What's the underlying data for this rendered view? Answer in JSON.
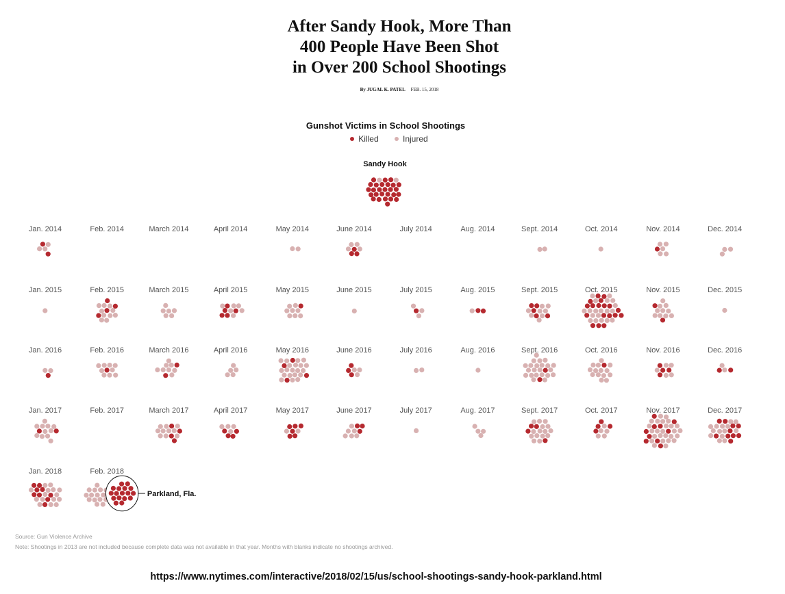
{
  "headline": {
    "line1": "After Sandy Hook, More Than",
    "line2": "400 People Have Been Shot",
    "line3": "in Over 200 School Shootings"
  },
  "byline": {
    "author": "By JUGAL K. PATEL",
    "date": "FEB. 15, 2018"
  },
  "footer": {
    "source": "Source: Gun Violence Archive",
    "note": "Note: Shootings in 2013 are not included because complete data was not available in that year. Months with blanks indicate no shootings archived.",
    "url": "https://www.nytimes.com/interactive/2018/02/15/us/school-shootings-sandy-hook-parkland.html"
  },
  "colors": {
    "killed": "#b5292f",
    "injured": "#d8b1b1",
    "annotation_outline": "#111111"
  },
  "chart_data": {
    "type": "dot-cluster",
    "title": "Gunshot Victims in School Shootings",
    "legend": [
      {
        "name": "Killed",
        "color": "#b5292f"
      },
      {
        "name": "Injured",
        "color": "#d8b1b1"
      }
    ],
    "highlight": {
      "label": "Sandy Hook",
      "killed": 27,
      "injured": 2
    },
    "months": [
      {
        "label": "Jan. 2014",
        "killed": 2,
        "injured": 3
      },
      {
        "label": "Feb. 2014",
        "killed": 0,
        "injured": 0
      },
      {
        "label": "March 2014",
        "killed": 0,
        "injured": 0
      },
      {
        "label": "April 2014",
        "killed": 0,
        "injured": 0
      },
      {
        "label": "May 2014",
        "killed": 0,
        "injured": 2
      },
      {
        "label": "June 2014",
        "killed": 3,
        "injured": 4
      },
      {
        "label": "July 2014",
        "killed": 0,
        "injured": 0
      },
      {
        "label": "Aug. 2014",
        "killed": 0,
        "injured": 0
      },
      {
        "label": "Sept. 2014",
        "killed": 0,
        "injured": 2
      },
      {
        "label": "Oct. 2014",
        "killed": 0,
        "injured": 1
      },
      {
        "label": "Nov. 2014",
        "killed": 1,
        "injured": 5
      },
      {
        "label": "Dec. 2014",
        "killed": 0,
        "injured": 3
      },
      {
        "label": "Jan. 2015",
        "killed": 0,
        "injured": 1
      },
      {
        "label": "Feb. 2015",
        "killed": 4,
        "injured": 10
      },
      {
        "label": "March 2015",
        "killed": 0,
        "injured": 6
      },
      {
        "label": "April 2015",
        "killed": 5,
        "injured": 6
      },
      {
        "label": "May 2015",
        "killed": 1,
        "injured": 8
      },
      {
        "label": "June 2015",
        "killed": 0,
        "injured": 1
      },
      {
        "label": "July 2015",
        "killed": 1,
        "injured": 3
      },
      {
        "label": "Aug. 2015",
        "killed": 2,
        "injured": 1
      },
      {
        "label": "Sept. 2015",
        "killed": 5,
        "injured": 8
      },
      {
        "label": "Oct. 2015",
        "killed": 18,
        "injured": 19
      },
      {
        "label": "Nov. 2015",
        "killed": 2,
        "injured": 10
      },
      {
        "label": "Dec. 2015",
        "killed": 0,
        "injured": 1
      },
      {
        "label": "Jan. 2016",
        "killed": 1,
        "injured": 2
      },
      {
        "label": "Feb. 2016",
        "killed": 1,
        "injured": 9
      },
      {
        "label": "March 2016",
        "killed": 2,
        "injured": 8
      },
      {
        "label": "April 2016",
        "killed": 0,
        "injured": 5
      },
      {
        "label": "May 2016",
        "killed": 4,
        "injured": 20
      },
      {
        "label": "June 2016",
        "killed": 3,
        "injured": 3
      },
      {
        "label": "July 2016",
        "killed": 0,
        "injured": 2
      },
      {
        "label": "Aug. 2016",
        "killed": 0,
        "injured": 1
      },
      {
        "label": "Sept. 2016",
        "killed": 2,
        "injured": 22
      },
      {
        "label": "Oct. 2016",
        "killed": 1,
        "injured": 14
      },
      {
        "label": "Nov. 2016",
        "killed": 4,
        "injured": 5
      },
      {
        "label": "Dec. 2016",
        "killed": 2,
        "injured": 2
      },
      {
        "label": "Jan. 2017",
        "killed": 2,
        "injured": 11
      },
      {
        "label": "Feb. 2017",
        "killed": 0,
        "injured": 0
      },
      {
        "label": "March 2017",
        "killed": 4,
        "injured": 10
      },
      {
        "label": "April 2017",
        "killed": 4,
        "injured": 4
      },
      {
        "label": "May 2017",
        "killed": 6,
        "injured": 2
      },
      {
        "label": "June 2017",
        "killed": 3,
        "injured": 6
      },
      {
        "label": "July 2017",
        "killed": 0,
        "injured": 1
      },
      {
        "label": "Aug. 2017",
        "killed": 0,
        "injured": 4
      },
      {
        "label": "Sept. 2017",
        "killed": 4,
        "injured": 15
      },
      {
        "label": "Oct. 2017",
        "killed": 4,
        "injured": 5
      },
      {
        "label": "Nov. 2017",
        "killed": 10,
        "injured": 26
      },
      {
        "label": "Dec. 2017",
        "killed": 10,
        "injured": 14
      },
      {
        "label": "Jan. 2018",
        "killed": 9,
        "injured": 15
      },
      {
        "label": "Feb. 2018",
        "killed": 17,
        "injured": 16,
        "annotation": "Parkland, Fla.",
        "annotated_killed": 17
      }
    ]
  }
}
